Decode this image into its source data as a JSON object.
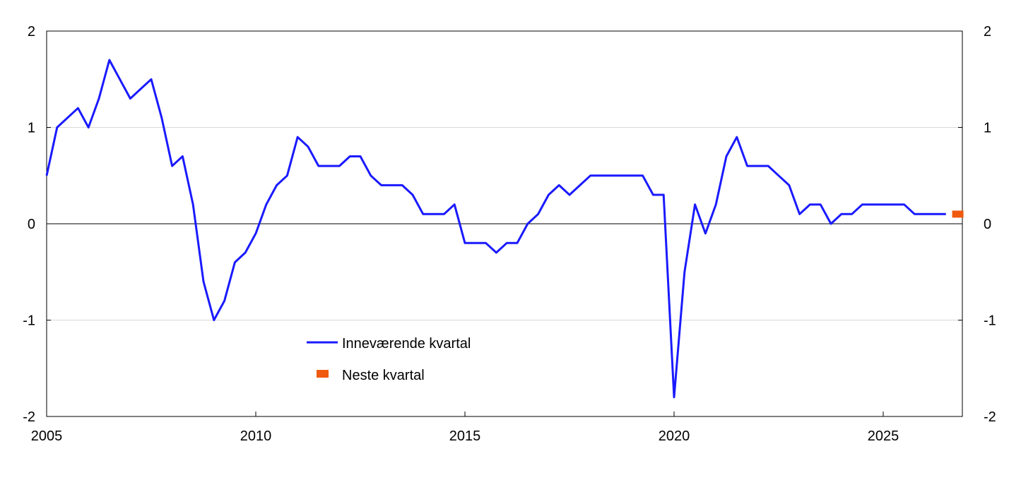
{
  "chart_data": {
    "type": "line",
    "title": "",
    "xlabel": "",
    "ylabel": "",
    "xlim": [
      2005.0,
      2026.9
    ],
    "ylim": [
      -2,
      2
    ],
    "grid": true,
    "x_ticks": [
      "2005",
      "2010",
      "2015",
      "2020",
      "2025"
    ],
    "y_ticks": [
      "2",
      "1",
      "0",
      "-1",
      "-2"
    ],
    "legend_position": "center-left, inside plot",
    "series": [
      {
        "name": "Inneværende kvartal",
        "color": "#1a1aff",
        "style": "line",
        "x": [
          2005.0,
          2005.25,
          2005.5,
          2005.75,
          2006.0,
          2006.25,
          2006.5,
          2006.75,
          2007.0,
          2007.25,
          2007.5,
          2007.75,
          2008.0,
          2008.25,
          2008.5,
          2008.75,
          2009.0,
          2009.25,
          2009.5,
          2009.75,
          2010.0,
          2010.25,
          2010.5,
          2010.75,
          2011.0,
          2011.25,
          2011.5,
          2011.75,
          2012.0,
          2012.25,
          2012.5,
          2012.75,
          2013.0,
          2013.25,
          2013.5,
          2013.75,
          2014.0,
          2014.25,
          2014.5,
          2014.75,
          2015.0,
          2015.25,
          2015.5,
          2015.75,
          2016.0,
          2016.25,
          2016.5,
          2016.75,
          2017.0,
          2017.25,
          2017.5,
          2017.75,
          2018.0,
          2018.25,
          2018.5,
          2018.75,
          2019.0,
          2019.25,
          2019.5,
          2019.75,
          2020.0,
          2020.25,
          2020.5,
          2020.75,
          2021.0,
          2021.25,
          2021.5,
          2021.75,
          2022.0,
          2022.25,
          2022.5,
          2022.75,
          2023.0,
          2023.25,
          2023.5,
          2023.75,
          2024.0,
          2024.25,
          2024.5,
          2024.75,
          2025.0,
          2025.25,
          2025.5,
          2025.75,
          2026.0,
          2026.25,
          2026.5
        ],
        "y": [
          0.5,
          1.0,
          1.1,
          1.2,
          1.0,
          1.3,
          1.7,
          1.5,
          1.3,
          1.4,
          1.5,
          1.1,
          0.6,
          0.7,
          0.2,
          -0.6,
          -1.0,
          -0.8,
          -0.4,
          -0.3,
          -0.1,
          0.2,
          0.4,
          0.5,
          0.9,
          0.8,
          0.6,
          0.6,
          0.6,
          0.7,
          0.7,
          0.5,
          0.4,
          0.4,
          0.4,
          0.3,
          0.1,
          0.1,
          0.1,
          0.2,
          -0.2,
          -0.2,
          -0.2,
          -0.3,
          -0.2,
          -0.2,
          0.0,
          0.1,
          0.3,
          0.4,
          0.3,
          0.4,
          0.5,
          0.5,
          0.5,
          0.5,
          0.5,
          0.5,
          0.3,
          0.3,
          -1.8,
          -0.5,
          0.2,
          -0.1,
          0.2,
          0.7,
          0.9,
          0.6,
          0.6,
          0.6,
          0.5,
          0.4,
          0.1,
          0.2,
          0.2,
          0.0,
          0.1,
          0.1,
          0.2,
          0.2,
          0.2,
          0.2,
          0.2,
          0.1,
          0.1,
          0.1,
          0.1
        ]
      },
      {
        "name": "Neste kvartal",
        "color": "#f05a0e",
        "style": "marker",
        "x": [
          2026.75
        ],
        "y": [
          0.1
        ]
      }
    ]
  }
}
